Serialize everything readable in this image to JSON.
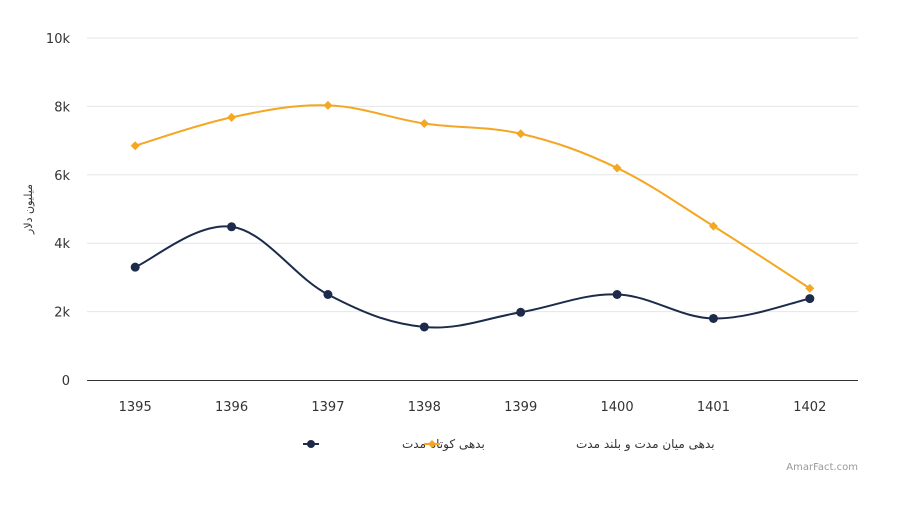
{
  "chart_data": {
    "type": "line",
    "title": "",
    "xlabel": "",
    "ylabel": "میلیون دلار",
    "categories": [
      "1395",
      "1396",
      "1397",
      "1398",
      "1399",
      "1400",
      "1401",
      "1402"
    ],
    "yticks": [
      "0",
      "2k",
      "4k",
      "6k",
      "8k",
      "10k"
    ],
    "ylim": [
      0,
      10000
    ],
    "grid": true,
    "legend_position": "bottom-center",
    "series": [
      {
        "name": "بدهی کوتاه مدت",
        "color": "#1c2b4a",
        "marker": "circle",
        "values": [
          3300,
          4480,
          2500,
          1550,
          1980,
          2500,
          1800,
          2380
        ]
      },
      {
        "name": "بدهی میان مدت و بلند مدت",
        "color": "#f5a623",
        "marker": "diamond",
        "values": [
          6850,
          7680,
          8030,
          7500,
          7200,
          6200,
          4500,
          2680
        ]
      }
    ]
  },
  "credit": "AmarFact.com"
}
